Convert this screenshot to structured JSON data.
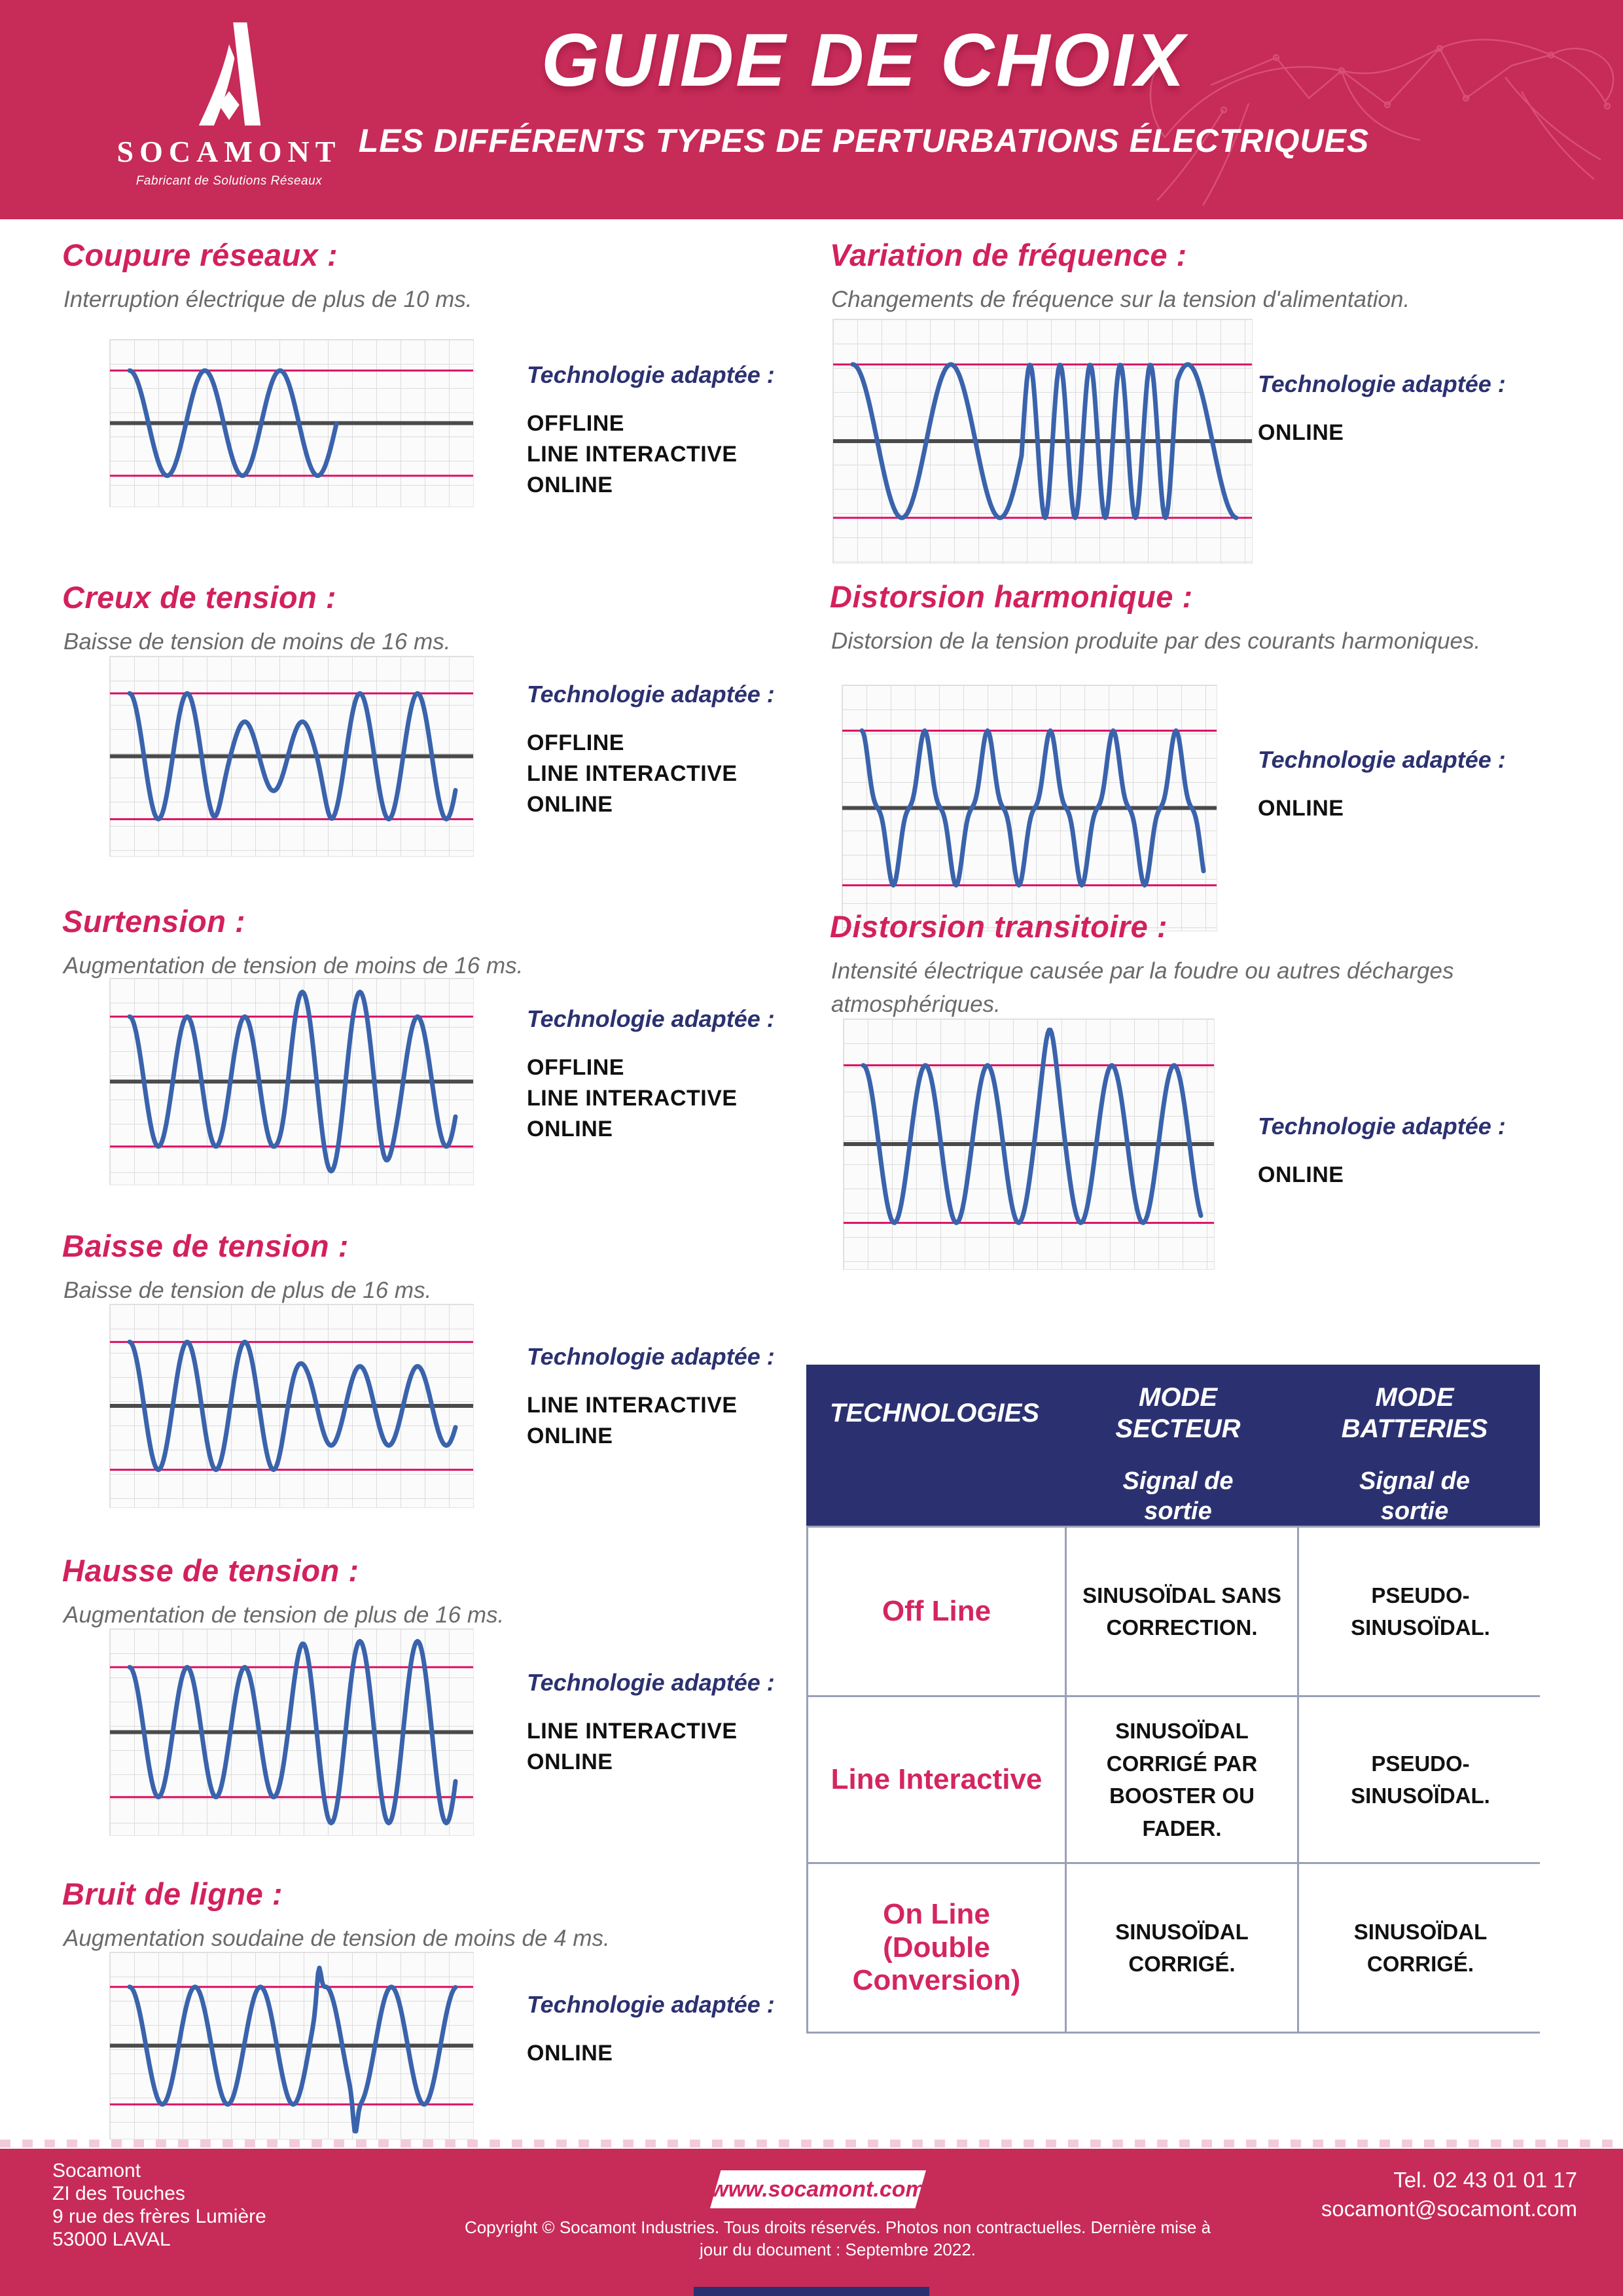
{
  "header": {
    "title": "GUIDE DE CHOIX",
    "subtitle": "LES DIFFÉRENTS TYPES DE PERTURBATIONS ÉLECTRIQUES",
    "brand": {
      "name": "SOCAMONT",
      "tagline": "Fabricant de Solutions Réseaux"
    }
  },
  "sections": [
    {
      "title": "Coupure réseaux :",
      "description": "Interruption électrique de plus de 10 ms.",
      "tech_label": "Technologie adaptée :",
      "technologies": [
        "OFFLINE",
        "LINE INTERACTIVE",
        "ONLINE"
      ],
      "waveform": "coupure"
    },
    {
      "title": "Creux de tension :",
      "description": "Baisse de tension de moins de 16 ms.",
      "tech_label": "Technologie adaptée :",
      "technologies": [
        "OFFLINE",
        "LINE INTERACTIVE",
        "ONLINE"
      ],
      "waveform": "sag-mid"
    },
    {
      "title": "Surtension :",
      "description": "Augmentation de tension de moins de 16 ms.",
      "tech_label": "Technologie adaptée :",
      "technologies": [
        "OFFLINE",
        "LINE INTERACTIVE",
        "ONLINE"
      ],
      "waveform": "swell-mid"
    },
    {
      "title": "Baisse de tension :",
      "description": "Baisse de tension de plus de 16 ms.",
      "tech_label": "Technologie adaptée :",
      "technologies": [
        "LINE INTERACTIVE",
        "ONLINE"
      ],
      "waveform": "sag-tail"
    },
    {
      "title": "Hausse de tension :",
      "description": "Augmentation de tension de plus de 16 ms.",
      "tech_label": "Technologie adaptée :",
      "technologies": [
        "LINE INTERACTIVE",
        "ONLINE"
      ],
      "waveform": "swell-tail"
    },
    {
      "title": "Bruit de ligne :",
      "description": "Augmentation soudaine de tension de moins de 4 ms.",
      "tech_label": "Technologie adaptée :",
      "technologies": [
        "ONLINE"
      ],
      "waveform": "noise"
    },
    {
      "title": "Variation de fréquence :",
      "description": "Changements de fréquence sur la tension d'alimentation.",
      "tech_label": "Technologie adaptée :",
      "technologies": [
        "ONLINE"
      ],
      "waveform": "freq-var"
    },
    {
      "title": "Distorsion harmonique :",
      "description": "Distorsion de la tension produite par des courants harmoniques.",
      "tech_label": "Technologie adaptée :",
      "technologies": [
        "ONLINE"
      ],
      "waveform": "harmonic"
    },
    {
      "title": "Distorsion transitoire :",
      "description": "Intensité électrique causée par la foudre ou autres décharges atmosphériques.",
      "tech_label": "Technologie adaptée :",
      "technologies": [
        "ONLINE"
      ],
      "waveform": "transient"
    }
  ],
  "table": {
    "col1_header": "TECHNOLOGIES",
    "columns": [
      {
        "title": "MODE SECTEUR",
        "subtitle": "Signal de sortie"
      },
      {
        "title": "MODE BATTERIES",
        "subtitle": "Signal de sortie"
      }
    ],
    "rows": [
      {
        "name": "Off Line",
        "secteur": "SINUSOÏDAL SANS CORRECTION.",
        "batteries": "PSEUDO-SINUSOÏDAL."
      },
      {
        "name": "Line Interactive",
        "secteur": "SINUSOÏDAL CORRIGÉ PAR BOOSTER OU FADER.",
        "batteries": "PSEUDO-SINUSOÏDAL."
      },
      {
        "name": "On Line (Double Conversion)",
        "secteur": "SINUSOÏDAL CORRIGÉ.",
        "batteries": "SINUSOÏDAL CORRIGÉ."
      }
    ]
  },
  "footer": {
    "address_lines": [
      "Socamont",
      "ZI des Touches",
      "9 rue des frères Lumière",
      "53000 LAVAL"
    ],
    "website": "www.socamont.com",
    "phone": "Tel. 02 43 01 01 17",
    "email": "socamont@socamont.com",
    "copyright": "Copyright © Socamont Industries. Tous droits réservés. Photos non contractuelles. Dernière mise à jour du document : Septembre 2022."
  },
  "colors": {
    "header_pink": "#C72B58",
    "accent_pink": "#D2215C",
    "navy": "#2B3170",
    "wave_blue": "#3A63AC",
    "limit_pink": "#DC0F63",
    "text_gray": "#6A6A6A"
  }
}
